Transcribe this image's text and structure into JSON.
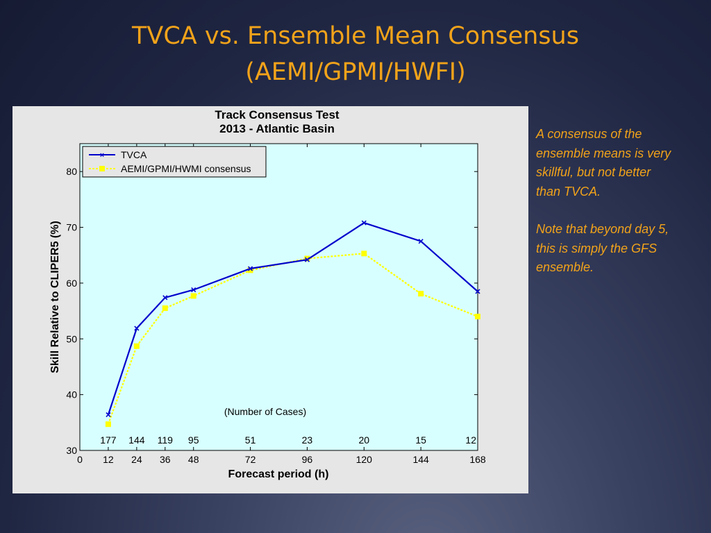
{
  "slide": {
    "title_line1": "TVCA vs. Ensemble Mean Consensus",
    "title_line2": "(AEMI/GPMI/HWFI)",
    "notes": [
      "A consensus of the ensemble means is very skillful, but not better than TVCA.",
      "Note that beyond day 5, this is simply the GFS ensemble."
    ]
  },
  "colors": {
    "title": "#f2a31a",
    "plot_bg": "#d8ffff",
    "figure_bg": "#e6e6e6",
    "tvca": "#0000cc",
    "consensus": "#ffff00"
  },
  "chart_data": {
    "type": "line",
    "title": "Track Consensus Test",
    "subtitle": "2013 - Atlantic Basin",
    "xlabel": "Forecast period (h)",
    "ylabel": "Skill Relative to CLIPER5 (%)",
    "xlim": [
      0,
      168
    ],
    "ylim": [
      30,
      85
    ],
    "x_ticks": [
      0,
      12,
      24,
      36,
      48,
      72,
      96,
      120,
      144,
      168
    ],
    "y_ticks": [
      30,
      40,
      50,
      60,
      70,
      80
    ],
    "grid": false,
    "legend_position": "top-left",
    "x": [
      12,
      24,
      36,
      48,
      72,
      96,
      120,
      144,
      168
    ],
    "series": [
      {
        "name": "TVCA",
        "values": [
          36.4,
          51.9,
          57.4,
          58.8,
          62.6,
          64.2,
          70.8,
          67.5,
          58.5
        ],
        "marker": "x"
      },
      {
        "name": "AEMI/GPMI/HWMI consensus",
        "values": [
          34.7,
          48.7,
          55.5,
          57.7,
          62.3,
          64.4,
          65.3,
          58.1,
          54.0
        ],
        "marker": "square"
      }
    ],
    "annotation": "(Number of Cases)",
    "case_counts": [
      {
        "x": 12,
        "label": "177"
      },
      {
        "x": 24,
        "label": "144"
      },
      {
        "x": 36,
        "label": "119"
      },
      {
        "x": 48,
        "label": "95"
      },
      {
        "x": 72,
        "label": "51"
      },
      {
        "x": 96,
        "label": "23"
      },
      {
        "x": 120,
        "label": "20"
      },
      {
        "x": 144,
        "label": "15"
      },
      {
        "x": 168,
        "label": "12"
      }
    ]
  }
}
